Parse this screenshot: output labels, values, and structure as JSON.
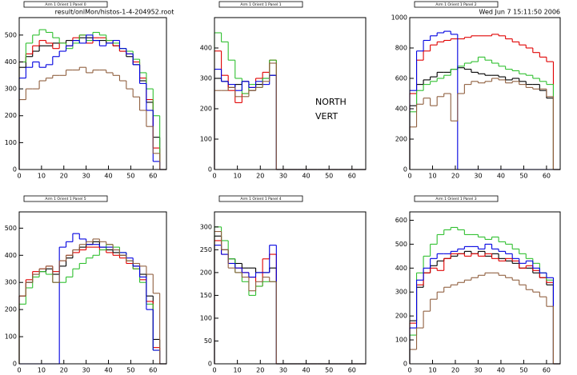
{
  "file": "result/onlMon/histos-1-4-204952.root",
  "date": "Wed Jun  7 15:11:50 2006",
  "label_lines": [
    "NORTH",
    "VERT"
  ],
  "chart_data": [
    {
      "type": "histogram",
      "title": "Arm 1 Orient 1 Panel 0",
      "bins": [
        0,
        3,
        6,
        9,
        12,
        15,
        18,
        21,
        24,
        27,
        30,
        33,
        36,
        39,
        42,
        45,
        48,
        51,
        54,
        57,
        60,
        63,
        66
      ],
      "xlim": [
        0,
        66
      ],
      "xticks": [
        0,
        10,
        20,
        30,
        40,
        50,
        60
      ],
      "ylim": [
        0,
        565
      ],
      "yticks": [
        0,
        100,
        200,
        300,
        400,
        500
      ],
      "series": [
        {
          "color": "#000000",
          "values": [
            380,
            420,
            440,
            460,
            460,
            470,
            470,
            480,
            480,
            490,
            490,
            480,
            480,
            470,
            460,
            440,
            420,
            390,
            330,
            250,
            120,
            0
          ]
        },
        {
          "color": "#e00000",
          "values": [
            400,
            430,
            460,
            480,
            470,
            450,
            470,
            460,
            490,
            500,
            470,
            490,
            490,
            480,
            460,
            440,
            430,
            400,
            340,
            260,
            80,
            0
          ]
        },
        {
          "color": "#30c030",
          "values": [
            400,
            470,
            500,
            520,
            510,
            490,
            470,
            450,
            470,
            500,
            480,
            510,
            500,
            480,
            470,
            450,
            440,
            410,
            360,
            300,
            200,
            0
          ]
        },
        {
          "color": "#0000e0",
          "values": [
            340,
            380,
            400,
            380,
            390,
            420,
            440,
            460,
            480,
            470,
            500,
            480,
            460,
            470,
            480,
            450,
            430,
            390,
            320,
            220,
            30,
            0
          ]
        },
        {
          "color": "#906040",
          "values": [
            260,
            300,
            300,
            330,
            340,
            350,
            350,
            370,
            370,
            380,
            360,
            370,
            370,
            360,
            350,
            330,
            300,
            270,
            220,
            160,
            60,
            0
          ]
        }
      ]
    },
    {
      "type": "histogram",
      "title": "Arm 1 Orient 1 Panel 1",
      "bins": [
        0,
        3,
        6,
        9,
        12,
        15,
        18,
        21,
        24,
        27,
        30,
        33,
        36,
        39,
        42,
        45,
        48,
        51,
        54,
        57,
        60,
        63,
        66
      ],
      "xlim": [
        0,
        66
      ],
      "xticks": [
        0,
        10,
        20,
        30,
        40,
        50,
        60
      ],
      "ylim": [
        0,
        500
      ],
      "yticks": [
        0,
        100,
        200,
        300,
        400
      ],
      "series": [
        {
          "color": "#000000",
          "values": [
            300,
            290,
            270,
            280,
            290,
            260,
            280,
            300,
            310,
            0,
            0,
            0,
            0,
            0,
            0,
            0,
            0,
            0,
            0,
            0,
            0,
            0
          ]
        },
        {
          "color": "#e00000",
          "values": [
            390,
            310,
            260,
            220,
            250,
            270,
            300,
            320,
            360,
            0,
            0,
            0,
            0,
            0,
            0,
            0,
            0,
            0,
            0,
            0,
            0,
            0
          ]
        },
        {
          "color": "#30c030",
          "values": [
            450,
            420,
            360,
            300,
            250,
            280,
            270,
            300,
            360,
            0,
            0,
            0,
            0,
            0,
            0,
            0,
            0,
            0,
            0,
            0,
            0,
            0
          ]
        },
        {
          "color": "#0000e0",
          "values": [
            330,
            290,
            280,
            260,
            290,
            270,
            290,
            280,
            310,
            0,
            0,
            0,
            0,
            0,
            0,
            0,
            0,
            0,
            0,
            0,
            0,
            0
          ]
        },
        {
          "color": "#906040",
          "values": [
            260,
            260,
            270,
            240,
            240,
            260,
            270,
            290,
            350,
            0,
            0,
            0,
            0,
            0,
            0,
            0,
            0,
            0,
            0,
            0,
            0,
            0
          ]
        }
      ]
    },
    {
      "type": "histogram",
      "title": "Arm 1 Orient 1 Panel 2",
      "bins": [
        0,
        3,
        6,
        9,
        12,
        15,
        18,
        21,
        24,
        27,
        30,
        33,
        36,
        39,
        42,
        45,
        48,
        51,
        54,
        57,
        60,
        63,
        66
      ],
      "xlim": [
        0,
        66
      ],
      "xticks": [
        0,
        10,
        20,
        30,
        40,
        50,
        60
      ],
      "ylim": [
        0,
        1000
      ],
      "yticks": [
        0,
        200,
        400,
        600,
        800,
        1000
      ],
      "series": [
        {
          "color": "#000000",
          "values": [
            420,
            560,
            590,
            610,
            640,
            640,
            660,
            670,
            660,
            640,
            630,
            620,
            620,
            610,
            590,
            600,
            580,
            560,
            560,
            520,
            470,
            0
          ]
        },
        {
          "color": "#e00000",
          "values": [
            500,
            720,
            780,
            820,
            840,
            850,
            860,
            860,
            870,
            880,
            880,
            880,
            890,
            880,
            860,
            840,
            820,
            800,
            770,
            740,
            710,
            0
          ]
        },
        {
          "color": "#30c030",
          "values": [
            380,
            520,
            560,
            580,
            600,
            620,
            660,
            680,
            700,
            710,
            740,
            720,
            700,
            680,
            660,
            650,
            630,
            620,
            600,
            580,
            560,
            0
          ]
        },
        {
          "color": "#0000e0",
          "values": [
            520,
            780,
            850,
            880,
            900,
            910,
            890,
            0,
            0,
            0,
            0,
            0,
            0,
            0,
            0,
            0,
            0,
            0,
            0,
            0,
            0,
            0
          ]
        },
        {
          "color": "#906040",
          "values": [
            280,
            430,
            470,
            420,
            480,
            500,
            320,
            500,
            560,
            580,
            570,
            580,
            600,
            590,
            570,
            580,
            560,
            540,
            530,
            530,
            480,
            0
          ]
        }
      ]
    },
    {
      "type": "histogram",
      "title": "Arm 1 Orient 1 Panel 5",
      "bins": [
        0,
        3,
        6,
        9,
        12,
        15,
        18,
        21,
        24,
        27,
        30,
        33,
        36,
        39,
        42,
        45,
        48,
        51,
        54,
        57,
        60,
        63,
        66
      ],
      "xlim": [
        0,
        66
      ],
      "xticks": [
        0,
        10,
        20,
        30,
        40,
        50,
        60
      ],
      "ylim": [
        0,
        560
      ],
      "yticks": [
        0,
        100,
        200,
        300,
        400,
        500
      ],
      "series": [
        {
          "color": "#000000",
          "values": [
            250,
            300,
            330,
            340,
            350,
            330,
            360,
            390,
            420,
            430,
            440,
            450,
            430,
            420,
            410,
            400,
            380,
            360,
            330,
            250,
            90,
            0
          ]
        },
        {
          "color": "#e00000",
          "values": [
            250,
            310,
            340,
            350,
            360,
            340,
            380,
            400,
            410,
            420,
            430,
            430,
            420,
            410,
            400,
            390,
            370,
            350,
            310,
            230,
            60,
            0
          ]
        },
        {
          "color": "#30c030",
          "values": [
            220,
            280,
            320,
            340,
            330,
            300,
            300,
            320,
            350,
            370,
            390,
            400,
            420,
            440,
            430,
            410,
            380,
            350,
            300,
            220,
            50,
            0
          ]
        },
        {
          "color": "#0000e0",
          "values": [
            0,
            0,
            0,
            0,
            0,
            0,
            430,
            450,
            480,
            460,
            440,
            440,
            430,
            430,
            420,
            410,
            390,
            360,
            320,
            200,
            50,
            0
          ]
        },
        {
          "color": "#906040",
          "values": [
            250,
            300,
            330,
            350,
            360,
            300,
            380,
            400,
            420,
            440,
            450,
            460,
            450,
            440,
            420,
            400,
            380,
            370,
            360,
            330,
            260,
            0
          ]
        }
      ]
    },
    {
      "type": "histogram",
      "title": "Arm 1 Orient 1 Panel 4",
      "bins": [
        0,
        3,
        6,
        9,
        12,
        15,
        18,
        21,
        24,
        27,
        30,
        33,
        36,
        39,
        42,
        45,
        48,
        51,
        54,
        57,
        60,
        63,
        66
      ],
      "xlim": [
        0,
        66
      ],
      "xticks": [
        0,
        10,
        20,
        30,
        40,
        50,
        60
      ],
      "ylim": [
        0,
        333
      ],
      "yticks": [
        0,
        50,
        100,
        150,
        200,
        250,
        300
      ],
      "series": [
        {
          "color": "#000000",
          "values": [
            280,
            250,
            230,
            220,
            210,
            210,
            200,
            200,
            210,
            0,
            0,
            0,
            0,
            0,
            0,
            0,
            0,
            0,
            0,
            0,
            0,
            0
          ]
        },
        {
          "color": "#e00000",
          "values": [
            270,
            240,
            220,
            210,
            200,
            190,
            170,
            230,
            240,
            0,
            0,
            0,
            0,
            0,
            0,
            0,
            0,
            0,
            0,
            0,
            0,
            0
          ]
        },
        {
          "color": "#30c030",
          "values": [
            300,
            270,
            230,
            200,
            180,
            150,
            170,
            180,
            180,
            0,
            0,
            0,
            0,
            0,
            0,
            0,
            0,
            0,
            0,
            0,
            0,
            0
          ]
        },
        {
          "color": "#0000e0",
          "values": [
            260,
            240,
            220,
            210,
            200,
            190,
            200,
            200,
            260,
            0,
            0,
            0,
            0,
            0,
            0,
            0,
            0,
            0,
            0,
            0,
            0,
            0
          ]
        },
        {
          "color": "#906040",
          "values": [
            290,
            250,
            210,
            200,
            190,
            160,
            180,
            190,
            180,
            0,
            0,
            0,
            0,
            0,
            0,
            0,
            0,
            0,
            0,
            0,
            0,
            0
          ]
        }
      ]
    },
    {
      "type": "histogram",
      "title": "Arm 1 Orient 1 Panel 3",
      "bins": [
        0,
        3,
        6,
        9,
        12,
        15,
        18,
        21,
        24,
        27,
        30,
        33,
        36,
        39,
        42,
        45,
        48,
        51,
        54,
        57,
        60,
        63,
        66
      ],
      "xlim": [
        0,
        66
      ],
      "xticks": [
        0,
        10,
        20,
        30,
        40,
        50,
        60
      ],
      "ylim": [
        0,
        635
      ],
      "yticks": [
        0,
        100,
        200,
        300,
        400,
        500,
        600
      ],
      "series": [
        {
          "color": "#000000",
          "values": [
            180,
            320,
            380,
            410,
            430,
            440,
            450,
            460,
            470,
            460,
            470,
            450,
            460,
            440,
            430,
            420,
            400,
            400,
            380,
            360,
            330,
            0
          ]
        },
        {
          "color": "#e00000",
          "values": [
            170,
            330,
            380,
            400,
            390,
            440,
            460,
            460,
            450,
            460,
            450,
            460,
            440,
            430,
            440,
            430,
            400,
            410,
            390,
            360,
            340,
            0
          ]
        },
        {
          "color": "#30c030",
          "values": [
            120,
            380,
            450,
            500,
            540,
            560,
            570,
            560,
            540,
            540,
            530,
            520,
            530,
            510,
            500,
            480,
            460,
            440,
            420,
            380,
            350,
            0
          ]
        },
        {
          "color": "#0000e0",
          "values": [
            150,
            350,
            400,
            440,
            460,
            460,
            470,
            480,
            490,
            490,
            480,
            500,
            480,
            470,
            460,
            440,
            420,
            430,
            400,
            380,
            360,
            0
          ]
        },
        {
          "color": "#906040",
          "values": [
            60,
            150,
            220,
            270,
            300,
            320,
            330,
            340,
            350,
            360,
            370,
            380,
            380,
            370,
            360,
            350,
            330,
            310,
            300,
            280,
            240,
            0
          ]
        }
      ]
    }
  ]
}
